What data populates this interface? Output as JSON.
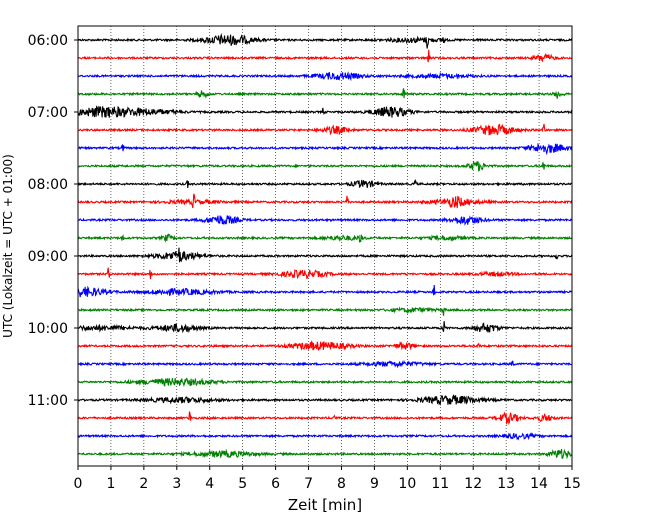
{
  "chart_data": {
    "type": "line",
    "title": "",
    "xlabel": "Zeit  [min]",
    "ylabel": "UTC (Lokalzeit = UTC + 01:00)",
    "xlim": [
      0,
      15
    ],
    "x_ticks": [
      "0",
      "1",
      "2",
      "3",
      "4",
      "5",
      "6",
      "7",
      "8",
      "9",
      "10",
      "11",
      "12",
      "13",
      "14",
      "15"
    ],
    "y_tick_labels": [
      "06:00",
      "07:00",
      "08:00",
      "09:00",
      "10:00",
      "11:00"
    ],
    "grid": "vertical dotted",
    "trace_interval_minutes": 15,
    "series_colors": [
      "#000000",
      "#ff0000",
      "#0000ff",
      "#008000"
    ],
    "traces": [
      {
        "start": "06:00",
        "color": "#000000"
      },
      {
        "start": "06:15",
        "color": "#ff0000"
      },
      {
        "start": "06:30",
        "color": "#0000ff"
      },
      {
        "start": "06:45",
        "color": "#008000"
      },
      {
        "start": "07:00",
        "color": "#000000"
      },
      {
        "start": "07:15",
        "color": "#ff0000"
      },
      {
        "start": "07:30",
        "color": "#0000ff"
      },
      {
        "start": "07:45",
        "color": "#008000"
      },
      {
        "start": "08:00",
        "color": "#000000"
      },
      {
        "start": "08:15",
        "color": "#ff0000"
      },
      {
        "start": "08:30",
        "color": "#0000ff"
      },
      {
        "start": "08:45",
        "color": "#008000"
      },
      {
        "start": "09:00",
        "color": "#000000"
      },
      {
        "start": "09:15",
        "color": "#ff0000"
      },
      {
        "start": "09:30",
        "color": "#0000ff"
      },
      {
        "start": "09:45",
        "color": "#008000"
      },
      {
        "start": "10:00",
        "color": "#000000"
      },
      {
        "start": "10:15",
        "color": "#ff0000"
      },
      {
        "start": "10:30",
        "color": "#0000ff"
      },
      {
        "start": "10:45",
        "color": "#008000"
      },
      {
        "start": "11:00",
        "color": "#000000"
      },
      {
        "start": "11:15",
        "color": "#ff0000"
      },
      {
        "start": "11:30",
        "color": "#0000ff"
      },
      {
        "start": "11:45",
        "color": "#008000"
      }
    ]
  }
}
